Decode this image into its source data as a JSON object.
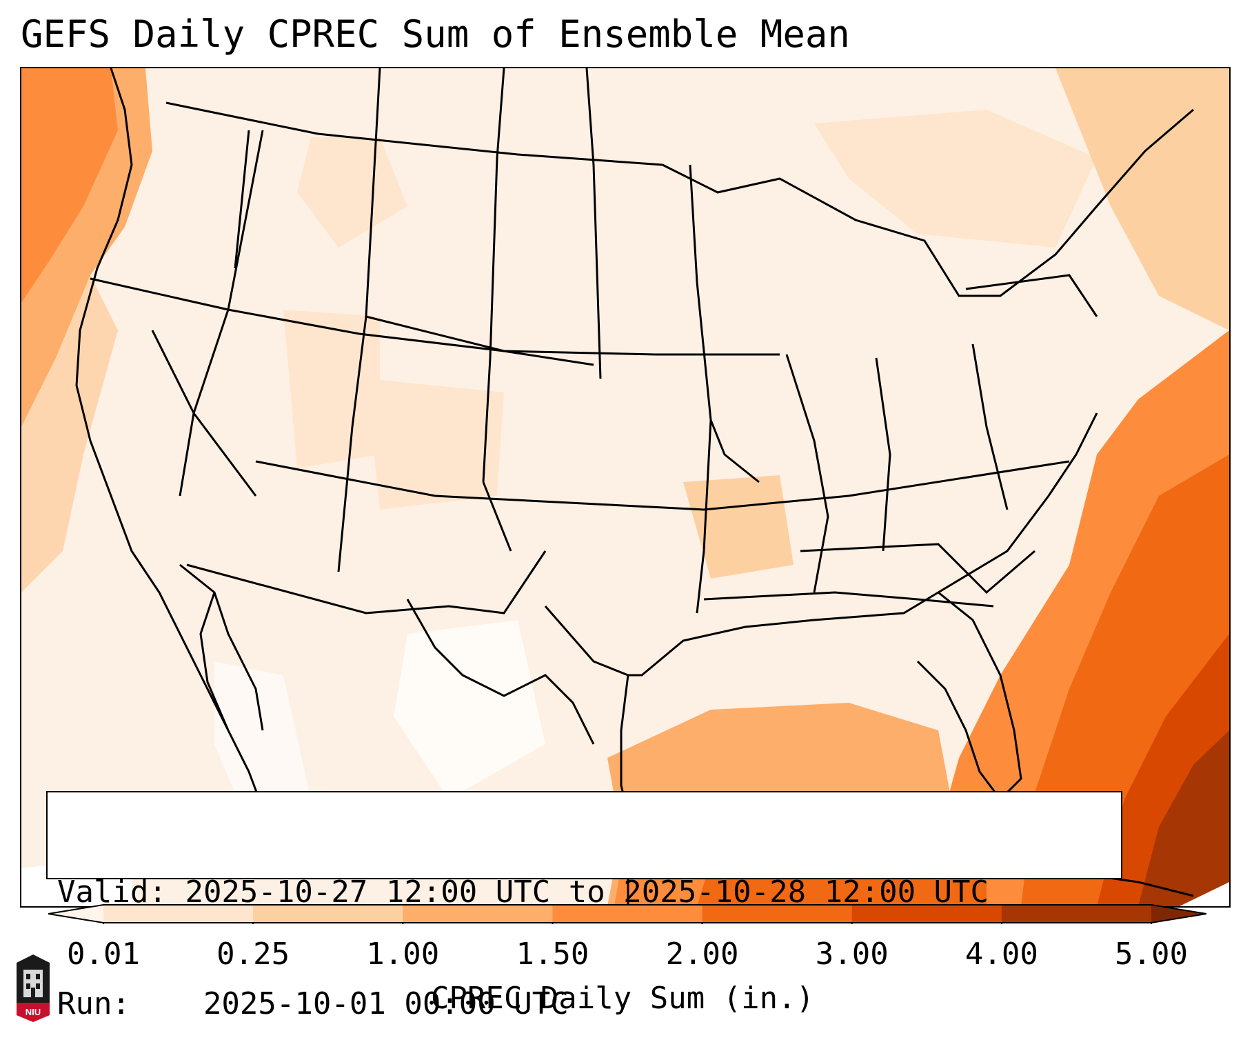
{
  "title": "GEFS Daily CPREC Sum of Ensemble Mean",
  "info": {
    "valid_label": "Valid:",
    "valid_value": "2025-10-27 12:00 UTC to 2025-10-28 12:00 UTC",
    "run_label": "Run:",
    "run_value": "2025-10-01 00:00 UTC"
  },
  "colorbar": {
    "label": "CPREC Daily Sum (in.)",
    "ticks": [
      "0.01",
      "0.25",
      "1.00",
      "1.50",
      "2.00",
      "3.00",
      "4.00",
      "5.00"
    ],
    "colors": [
      "#fff5eb",
      "#fee6ce",
      "#fdd0a2",
      "#fdae6b",
      "#fd8d3c",
      "#f16913",
      "#d94801",
      "#a63603",
      "#7f2704"
    ]
  },
  "logo": {
    "text": "NIU"
  },
  "map": {
    "region": "CONUS",
    "field": "CPREC daily sum",
    "notable_features": [
      "heavy precipitation off Southeast coast",
      "moderate precipitation over Gulf of Mexico",
      "moderate precipitation off Pacific Northwest coast"
    ]
  }
}
